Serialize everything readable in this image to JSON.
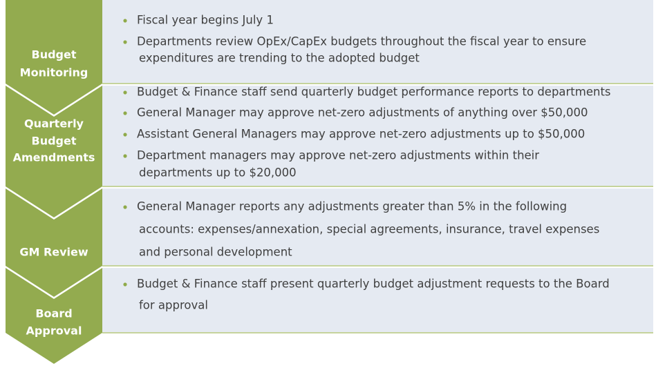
{
  "stages": [
    {
      "label": [
        "Budget",
        "Monitoring"
      ],
      "bullets": [
        [
          "Fiscal year begins July 1"
        ],
        [
          "Departments review OpEx/CapEx budgets throughout the fiscal year to ensure",
          "expenditures are trending to the adopted budget"
        ]
      ]
    },
    {
      "label": [
        "Quarterly",
        "Budget",
        "Amendments"
      ],
      "bullets": [
        [
          "Budget & Finance staff send quarterly budget performance reports to departments"
        ],
        [
          "General Manager may approve net-zero adjustments of anything over $50,000"
        ],
        [
          "Assistant General Managers may approve net-zero adjustments up to $50,000"
        ],
        [
          "Department managers may approve net-zero adjustments within their",
          "departments up to $20,000"
        ]
      ]
    },
    {
      "label": [
        "GM Review"
      ],
      "bullets": [
        [
          "General Manager reports any adjustments greater than 5% in the following",
          "accounts: expenses/annexation, special agreements, insurance, travel expenses",
          "and personal development"
        ]
      ]
    },
    {
      "label": [
        "Board",
        "Approval"
      ],
      "bullets": [
        [
          "Budget & Finance staff present quarterly budget adjustment requests to the Board",
          "for approval"
        ]
      ]
    }
  ]
}
